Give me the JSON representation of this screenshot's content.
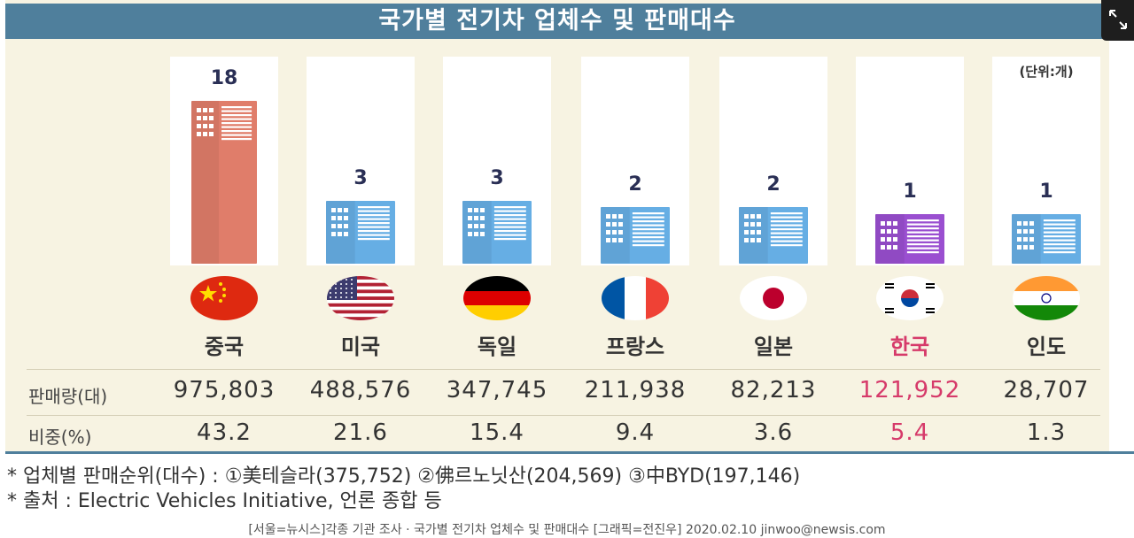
{
  "chart_data": {
    "type": "bar",
    "title": "국가별 전기차 업체수 및 판매대수",
    "unit_note": "(단위:개)",
    "categories": [
      "중국",
      "미국",
      "독일",
      "프랑스",
      "일본",
      "한국",
      "인도"
    ],
    "values": [
      18,
      3,
      3,
      2,
      2,
      1,
      1
    ],
    "ylim": [
      0,
      18
    ],
    "highlight_category": "한국",
    "colors": {
      "default": "#66aee4",
      "china": "#e07d6a",
      "korea": "#9a4fd0",
      "highlight_text": "#d63a6a",
      "title_bar": "#4f7f9c"
    },
    "table": {
      "rows": [
        {
          "label": "판매량(대)",
          "values": [
            "975,803",
            "488,576",
            "347,745",
            "211,938",
            "82,213",
            "121,952",
            "28,707"
          ]
        },
        {
          "label": "비중(%)",
          "values": [
            "43.2",
            "21.6",
            "15.4",
            "9.4",
            "3.6",
            "5.4",
            "1.3"
          ]
        }
      ]
    },
    "notes": [
      "* 업체별 판매순위(대수) : ①美테슬라(375,752) ②佛르노닛산(204,569) ③中BYD(197,146)",
      "* 출처 : Electric Vehicles Initiative, 언론 종합 등"
    ],
    "caption": "[서울=뉴시스]각종 기관 조사 · 국가별 전기차 업체수 및 판매대수 [그래픽=전진우] 2020.02.10 jinwoo@newsis.com"
  },
  "ui": {
    "expand_icon": "expand-icon"
  }
}
